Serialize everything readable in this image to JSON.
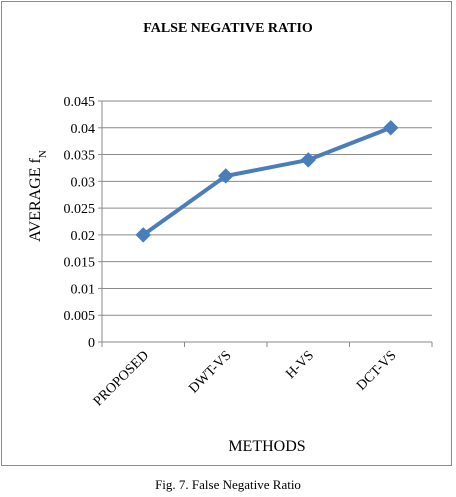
{
  "chart_data": {
    "type": "line",
    "title": "FALSE NEGATIVE RATIO",
    "xlabel": "METHODS",
    "ylabel": "AVERAGE f",
    "ylabel_subscript": "N",
    "categories": [
      "PROPOSED",
      "DWT-VS",
      "H-VS",
      "DCT-VS"
    ],
    "series": [
      {
        "values": [
          0.02,
          0.031,
          0.034,
          0.04
        ],
        "color": "#4a7ebb",
        "marker": "diamond"
      }
    ],
    "ylim": [
      0,
      0.045
    ],
    "yticks": [
      0,
      0.005,
      0.01,
      0.015,
      0.02,
      0.025,
      0.03,
      0.035,
      0.04,
      0.045
    ],
    "ytick_labels": [
      "0",
      "0.005",
      "0.01",
      "0.015",
      "0.02",
      "0.025",
      "0.03",
      "0.035",
      "0.04",
      "0.045"
    ],
    "grid": true,
    "legend": "none"
  },
  "caption": "Fig. 7. False Negative Ratio"
}
